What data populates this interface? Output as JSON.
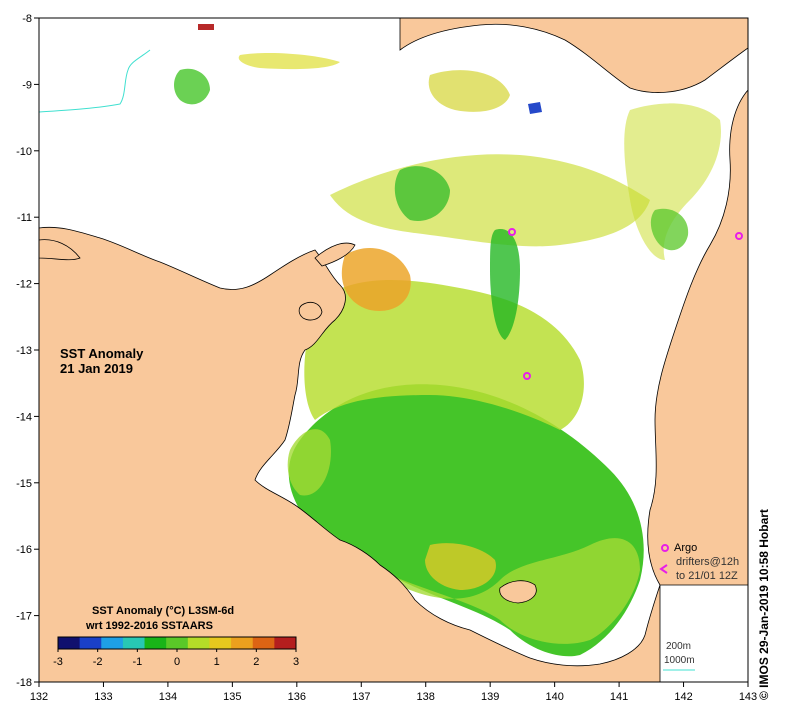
{
  "map": {
    "title": "SST Anomaly",
    "date": "21 Jan 2019",
    "x_ticks": [
      "132",
      "133",
      "134",
      "135",
      "136",
      "137",
      "138",
      "139",
      "140",
      "141",
      "142",
      "143"
    ],
    "y_ticks": [
      "-8",
      "-9",
      "-10",
      "-11",
      "-12",
      "-13",
      "-14",
      "-15",
      "-16",
      "-17",
      "-18"
    ],
    "lon_range": [
      132,
      143
    ],
    "lat_range": [
      -18,
      -8
    ],
    "colors": {
      "land": "#f9c89b",
      "no_data": "#ffffff",
      "frame": "#000000"
    }
  },
  "colorbar": {
    "title_line1": "SST Anomaly (°C) L3SM-6d",
    "title_line2": "wrt 1992-2016 SSTAARS",
    "ticks": [
      "-3",
      "-2",
      "-1",
      "0",
      "1",
      "2",
      "3"
    ],
    "range": [
      -3,
      3
    ],
    "colors": [
      "#10106e",
      "#1a40c8",
      "#1ea0e6",
      "#28c8b4",
      "#18b418",
      "#5ac828",
      "#b4dc28",
      "#e6c81e",
      "#eba01e",
      "#dc6414",
      "#b41e1e"
    ]
  },
  "legend": {
    "argo_label": "Argo",
    "argo_color": "#e81ee8",
    "drifters_label": "drifters@12h",
    "drifters_period": "to 21/01 12Z",
    "contour_200": "200m",
    "contour_1000": "1000m",
    "contour_color": "#40e0d0"
  },
  "credit": "© IMOS 29-Jan-2019 10:58 Hobart"
}
